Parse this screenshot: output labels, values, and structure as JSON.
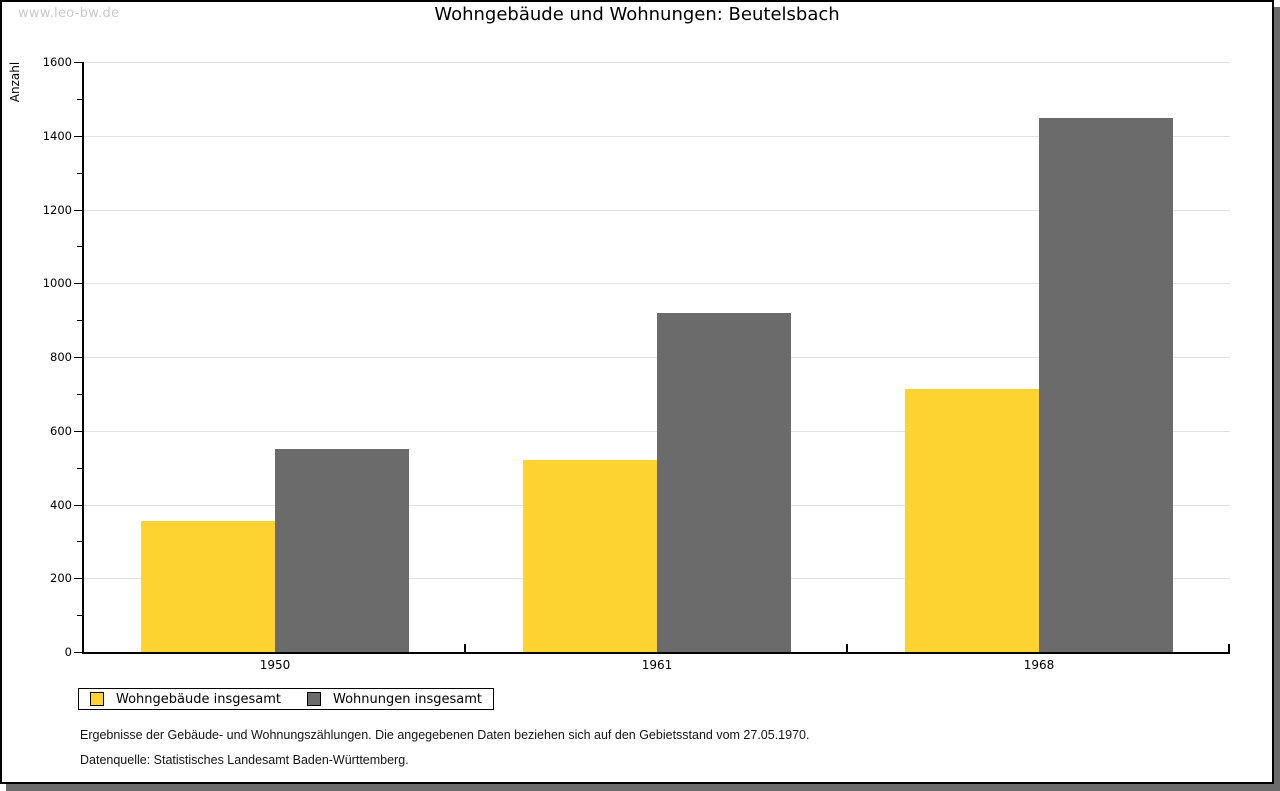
{
  "watermark": "www.leo-bw.de",
  "chart_data": {
    "type": "bar",
    "title": "Wohngebäude und Wohnungen: Beutelsbach",
    "categories": [
      "1950",
      "1961",
      "1968"
    ],
    "series": [
      {
        "name": "Wohngebäude insgesamt",
        "color": "#fdd331",
        "values": [
          355,
          520,
          712
        ]
      },
      {
        "name": "Wohnungen insgesamt",
        "color": "#6b6b6b",
        "values": [
          552,
          920,
          1448
        ]
      }
    ],
    "xlabel": "",
    "ylabel": "Anzahl",
    "ylim": [
      0,
      1600
    ],
    "yticks": [
      0,
      200,
      400,
      600,
      800,
      1000,
      1200,
      1400,
      1600
    ],
    "ytick_step": 200,
    "minor_tick_step": 100,
    "grid": true,
    "legend_position": "bottom-left",
    "bar_layout": "grouped"
  },
  "footnotes": [
    "Ergebnisse der Gebäude- und Wohnungszählungen. Die angegebenen Daten beziehen sich auf den Gebietsstand vom 27.05.1970.",
    "Datenquelle: Statistisches Landesamt Baden-Württemberg."
  ],
  "colors": {
    "bar_yellow": "#fdd331",
    "bar_gray": "#6b6b6b",
    "gridline": "#e1e1e1",
    "watermark": "#c9c9c9",
    "frame_shadow": "#6b6b6b"
  }
}
